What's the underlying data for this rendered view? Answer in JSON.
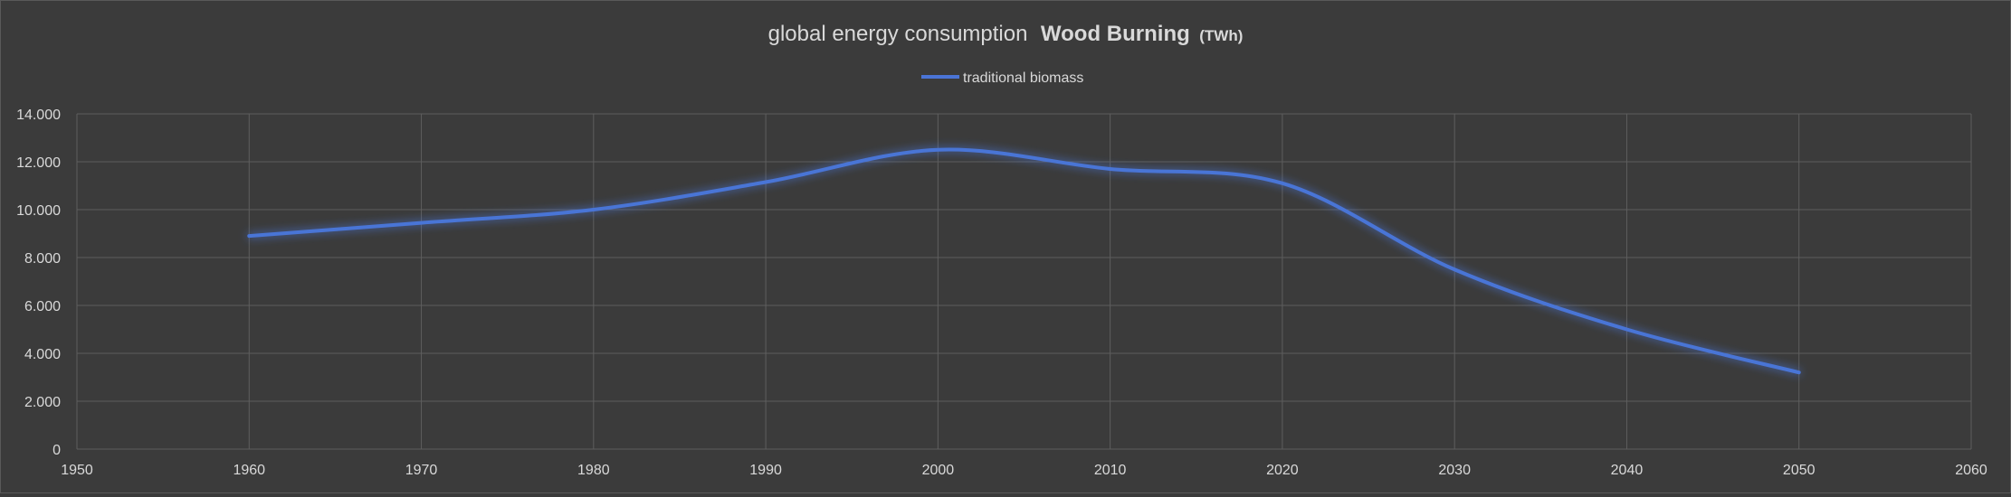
{
  "chart_data": {
    "type": "line",
    "title_main": "global energy consumption",
    "title_bold": "Wood Burning",
    "title_unit": "(TWh)",
    "legend": {
      "label": "traditional biomass",
      "position": "top"
    },
    "xlim": [
      1950,
      2060
    ],
    "ylim": [
      0,
      14000
    ],
    "x_ticks": [
      1950,
      1960,
      1970,
      1980,
      1990,
      2000,
      2010,
      2020,
      2030,
      2040,
      2050,
      2060
    ],
    "x_tick_labels": [
      "1950",
      "1960",
      "1970",
      "1980",
      "1990",
      "2000",
      "2010",
      "2020",
      "2030",
      "2040",
      "2050",
      "2060"
    ],
    "y_ticks": [
      0,
      2000,
      4000,
      6000,
      8000,
      10000,
      12000,
      14000
    ],
    "y_tick_labels": [
      "0",
      "2.000",
      "4.000",
      "6.000",
      "8.000",
      "10.000",
      "12.000",
      "14.000"
    ],
    "grid": true,
    "series": [
      {
        "name": "traditional biomass",
        "color": "#4a74d6",
        "x": [
          1960,
          1970,
          1980,
          1990,
          2000,
          2010,
          2020,
          2030,
          2040,
          2050
        ],
        "y": [
          8900,
          9450,
          10000,
          11150,
          12500,
          11700,
          11100,
          7500,
          5000,
          3200
        ]
      }
    ]
  }
}
